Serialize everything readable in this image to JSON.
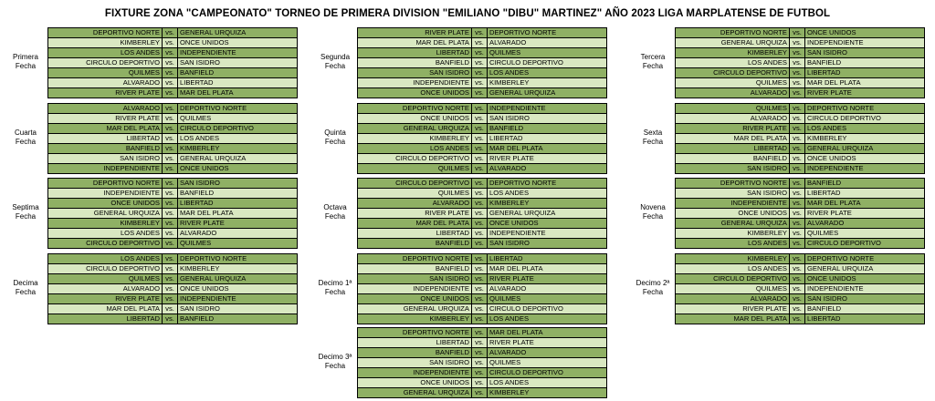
{
  "title": "FIXTURE ZONA \"CAMPEONATO\" TORNEO DE PRIMERA DIVISION \"EMILIANO \"DIBU\" MARTINEZ\" AÑO 2023 LIGA MARPLATENSE DE FUTBOL",
  "vs_label": "vs.",
  "colors": {
    "row_dark": "#8fb064",
    "row_light": "#d9e8c1"
  },
  "fechas": [
    {
      "label_1": "Primera",
      "label_2": "Fecha",
      "matches": [
        {
          "home": "DEPORTIVO NORTE",
          "away": "GENERAL URQUIZA"
        },
        {
          "home": "KIMBERLEY",
          "away": "ONCE UNIDOS"
        },
        {
          "home": "LOS ANDES",
          "away": "INDEPENDIENTE"
        },
        {
          "home": "CIRCULO DEPORTIVO",
          "away": "SAN ISIDRO"
        },
        {
          "home": "QUILMES",
          "away": "BANFIELD"
        },
        {
          "home": "ALVARADO",
          "away": "LIBERTAD"
        },
        {
          "home": "RIVER PLATE",
          "away": "MAR DEL PLATA"
        }
      ]
    },
    {
      "label_1": "Segunda",
      "label_2": "Fecha",
      "matches": [
        {
          "home": "RIVER PLATE",
          "away": "DEPORTIVO NORTE"
        },
        {
          "home": "MAR DEL PLATA",
          "away": "ALVARADO"
        },
        {
          "home": "LIBERTAD",
          "away": "QUILMES"
        },
        {
          "home": "BANFIELD",
          "away": "CIRCULO DEPORTIVO"
        },
        {
          "home": "SAN ISIDRO",
          "away": "LOS ANDES"
        },
        {
          "home": "INDEPENDIENTE",
          "away": "KIMBERLEY"
        },
        {
          "home": "ONCE UNIDOS",
          "away": "GENERAL URQUIZA"
        }
      ]
    },
    {
      "label_1": "Tercera",
      "label_2": "Fecha",
      "matches": [
        {
          "home": "DEPORTIVO NORTE",
          "away": "ONCE UNIDOS"
        },
        {
          "home": "GENERAL URQUIZA",
          "away": "INDEPENDIENTE"
        },
        {
          "home": "KIMBERLEY",
          "away": "SAN ISIDRO"
        },
        {
          "home": "LOS ANDES",
          "away": "BANFIELD"
        },
        {
          "home": "CIRCULO DEPORTIVO",
          "away": "LIBERTAD"
        },
        {
          "home": "QUILMES",
          "away": "MAR DEL PLATA"
        },
        {
          "home": "ALVARADO",
          "away": "RIVER PLATE"
        }
      ]
    },
    {
      "label_1": "Cuarta",
      "label_2": "Fecha",
      "matches": [
        {
          "home": "ALVARADO",
          "away": "DEPORTIVO NORTE"
        },
        {
          "home": "RIVER PLATE",
          "away": "QUILMES"
        },
        {
          "home": "MAR DEL PLATA",
          "away": "CIRCULO DEPORTIVO"
        },
        {
          "home": "LIBERTAD",
          "away": "LOS ANDES"
        },
        {
          "home": "BANFIELD",
          "away": "KIMBERLEY"
        },
        {
          "home": "SAN ISIDRO",
          "away": "GENERAL URQUIZA"
        },
        {
          "home": "INDEPENDIENTE",
          "away": "ONCE UNIDOS"
        }
      ]
    },
    {
      "label_1": "Quinta",
      "label_2": "Fecha",
      "matches": [
        {
          "home": "DEPORTIVO NORTE",
          "away": "INDEPENDIENTE"
        },
        {
          "home": "ONCE UNIDOS",
          "away": "SAN ISIDRO"
        },
        {
          "home": "GENERAL URQUIZA",
          "away": "BANFIELD"
        },
        {
          "home": "KIMBERLEY",
          "away": "LIBERTAD"
        },
        {
          "home": "LOS ANDES",
          "away": "MAR DEL PLATA"
        },
        {
          "home": "CIRCULO DEPORTIVO",
          "away": "RIVER PLATE"
        },
        {
          "home": "QUILMES",
          "away": "ALVARADO"
        }
      ]
    },
    {
      "label_1": "Sexta",
      "label_2": "Fecha",
      "matches": [
        {
          "home": "QUILMES",
          "away": "DEPORTIVO NORTE"
        },
        {
          "home": "ALVARADO",
          "away": "CIRCULO DEPORTIVO"
        },
        {
          "home": "RIVER PLATE",
          "away": "LOS ANDES"
        },
        {
          "home": "MAR DEL PLATA",
          "away": "KIMBERLEY"
        },
        {
          "home": "LIBERTAD",
          "away": "GENERAL URQUIZA"
        },
        {
          "home": "BANFIELD",
          "away": "ONCE UNIDOS"
        },
        {
          "home": "SAN ISIDRO",
          "away": "INDEPENDIENTE"
        }
      ]
    },
    {
      "label_1": "Septima",
      "label_2": "Fecha",
      "matches": [
        {
          "home": "DEPORTIVO NORTE",
          "away": "SAN ISIDRO"
        },
        {
          "home": "INDEPENDIENTE",
          "away": "BANFIELD"
        },
        {
          "home": "ONCE UNIDOS",
          "away": "LIBERTAD"
        },
        {
          "home": "GENERAL URQUIZA",
          "away": "MAR DEL PLATA"
        },
        {
          "home": "KIMBERLEY",
          "away": "RIVER PLATE"
        },
        {
          "home": "LOS ANDES",
          "away": "ALVARADO"
        },
        {
          "home": "CIRCULO DEPORTIVO",
          "away": "QUILMES"
        }
      ]
    },
    {
      "label_1": "Octava",
      "label_2": "Fecha",
      "matches": [
        {
          "home": "CIRCULO DEPORTIVO",
          "away": "DEPORTIVO NORTE"
        },
        {
          "home": "QUILMES",
          "away": "LOS ANDES"
        },
        {
          "home": "ALVARADO",
          "away": "KIMBERLEY"
        },
        {
          "home": "RIVER PLATE",
          "away": "GENERAL URQUIZA"
        },
        {
          "home": "MAR DEL PLATA",
          "away": "ONCE UNIDOS"
        },
        {
          "home": "LIBERTAD",
          "away": "INDEPENDIENTE"
        },
        {
          "home": "BANFIELD",
          "away": "SAN ISIDRO"
        }
      ]
    },
    {
      "label_1": "Novena",
      "label_2": "Fecha",
      "matches": [
        {
          "home": "DEPORTIVO NORTE",
          "away": "BANFIELD"
        },
        {
          "home": "SAN ISIDRO",
          "away": "LIBERTAD"
        },
        {
          "home": "INDEPENDIENTE",
          "away": "MAR DEL PLATA"
        },
        {
          "home": "ONCE UNIDOS",
          "away": "RIVER PLATE"
        },
        {
          "home": "GENERAL URQUIZA",
          "away": "ALVARADO"
        },
        {
          "home": "KIMBERLEY",
          "away": "QUILMES"
        },
        {
          "home": "LOS ANDES",
          "away": "CIRCULO DEPORTIVO"
        }
      ]
    },
    {
      "label_1": "Decima",
      "label_2": "Fecha",
      "matches": [
        {
          "home": "LOS ANDES",
          "away": "DEPORTIVO NORTE"
        },
        {
          "home": "CIRCULO DEPORTIVO",
          "away": "KIMBERLEY"
        },
        {
          "home": "QUILMES",
          "away": "GENERAL URQUIZA"
        },
        {
          "home": "ALVARADO",
          "away": "ONCE UNIDOS"
        },
        {
          "home": "RIVER PLATE",
          "away": "INDEPENDIENTE"
        },
        {
          "home": "MAR DEL PLATA",
          "away": "SAN ISIDRO"
        },
        {
          "home": "LIBERTAD",
          "away": "BANFIELD"
        }
      ]
    },
    {
      "label_1": "Decimo 1ª",
      "label_2": "Fecha",
      "matches": [
        {
          "home": "DEPORTIVO NORTE",
          "away": "LIBERTAD"
        },
        {
          "home": "BANFIELD",
          "away": "MAR DEL PLATA"
        },
        {
          "home": "SAN ISIDRO",
          "away": "RIVER PLATE"
        },
        {
          "home": "INDEPENDIENTE",
          "away": "ALVARADO"
        },
        {
          "home": "ONCE UNIDOS",
          "away": "QUILMES"
        },
        {
          "home": "GENERAL URQUIZA",
          "away": "CIRCULO DEPORTIVO"
        },
        {
          "home": "KIMBERLEY",
          "away": "LOS ANDES"
        }
      ]
    },
    {
      "label_1": "Decimo 2ª",
      "label_2": "Fecha",
      "matches": [
        {
          "home": "KIMBERLEY",
          "away": "DEPORTIVO NORTE"
        },
        {
          "home": "LOS ANDES",
          "away": "GENERAL URQUIZA"
        },
        {
          "home": "CIRCULO DEPORTIVO",
          "away": "ONCE UNIDOS"
        },
        {
          "home": "QUILMES",
          "away": "INDEPENDIENTE"
        },
        {
          "home": "ALVARADO",
          "away": "SAN ISIDRO"
        },
        {
          "home": "RIVER PLATE",
          "away": "BANFIELD"
        },
        {
          "home": "MAR DEL PLATA",
          "away": "LIBERTAD"
        }
      ]
    },
    {
      "label_1": "Decimo 3ª",
      "label_2": "Fecha",
      "matches": [
        {
          "home": "DEPORTIVO NORTE",
          "away": "MAR DEL PLATA"
        },
        {
          "home": "LIBERTAD",
          "away": "RIVER PLATE"
        },
        {
          "home": "BANFIELD",
          "away": "ALVARADO"
        },
        {
          "home": "SAN ISIDRO",
          "away": "QUILMES"
        },
        {
          "home": "INDEPENDIENTE",
          "away": "CIRCULO DEPORTIVO"
        },
        {
          "home": "ONCE UNIDOS",
          "away": "LOS ANDES"
        },
        {
          "home": "GENERAL URQUIZA",
          "away": "KIMBERLEY"
        }
      ]
    }
  ]
}
